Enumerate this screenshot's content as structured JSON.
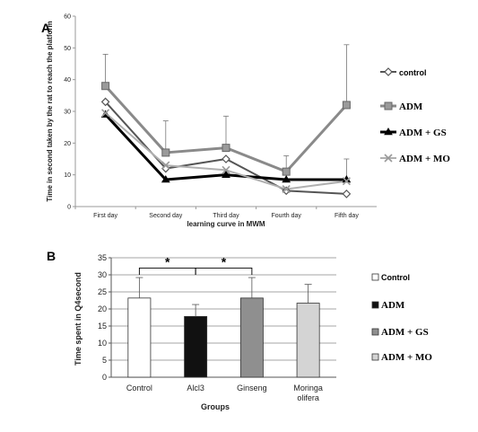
{
  "chart_data": [
    {
      "panel": "A",
      "type": "line",
      "title": "",
      "xlabel": "learning curve in MWM",
      "ylabel": "Time in second taken by the rat to reach the platform",
      "categories": [
        "First day",
        "Second day",
        "Third day",
        "Fourth day",
        "Fifth day"
      ],
      "ylim": [
        0,
        60
      ],
      "yticks": [
        0,
        10,
        20,
        30,
        40,
        50,
        60
      ],
      "grid": false,
      "legend_position": "right",
      "series": [
        {
          "name": "control",
          "values": [
            33,
            12,
            15,
            5,
            4
          ],
          "errors": [
            0,
            0,
            0,
            0,
            0
          ],
          "color": "#555555",
          "width": 2,
          "marker": "diamond-open"
        },
        {
          "name": "ADM",
          "values": [
            38,
            17,
            18.5,
            11,
            32
          ],
          "errors": [
            10,
            10,
            10,
            5,
            19
          ],
          "color": "#8a8a8a",
          "width": 3,
          "marker": "square"
        },
        {
          "name": "ADM + GS",
          "values": [
            29,
            8.5,
            10,
            8.5,
            8.5
          ],
          "errors": [
            0,
            0,
            0,
            0,
            0
          ],
          "color": "#000000",
          "width": 3,
          "marker": "triangle"
        },
        {
          "name": "ADM + MO",
          "values": [
            29.5,
            13,
            11.5,
            5.5,
            8
          ],
          "errors": [
            0,
            0,
            0,
            0,
            7
          ],
          "color": "#b0b0b0",
          "width": 2,
          "marker": "x"
        }
      ]
    },
    {
      "panel": "B",
      "type": "bar",
      "title": "",
      "xlabel": "Groups",
      "ylabel": "Time spent in Q4second",
      "categories": [
        "Control",
        "Alcl3",
        "Ginseng",
        "Moringa olifera"
      ],
      "values": [
        23.2,
        17.8,
        23.2,
        21.7
      ],
      "errors": [
        6,
        3.5,
        6,
        5.5
      ],
      "colors": [
        "#ffffff",
        "#111111",
        "#8f8f8f",
        "#d4d4d4"
      ],
      "ylim": [
        0,
        35
      ],
      "yticks": [
        0,
        5,
        10,
        15,
        20,
        25,
        30,
        35
      ],
      "grid": true,
      "legend_position": "right",
      "legend": [
        "Control",
        "ADM",
        "ADM + GS",
        "ADM + MO"
      ],
      "significance": [
        {
          "from": 0,
          "to": 1,
          "label": "*"
        },
        {
          "from": 1,
          "to": 2,
          "label": "*"
        }
      ]
    }
  ],
  "labels": {
    "panelA": "A",
    "panelB": "B"
  }
}
